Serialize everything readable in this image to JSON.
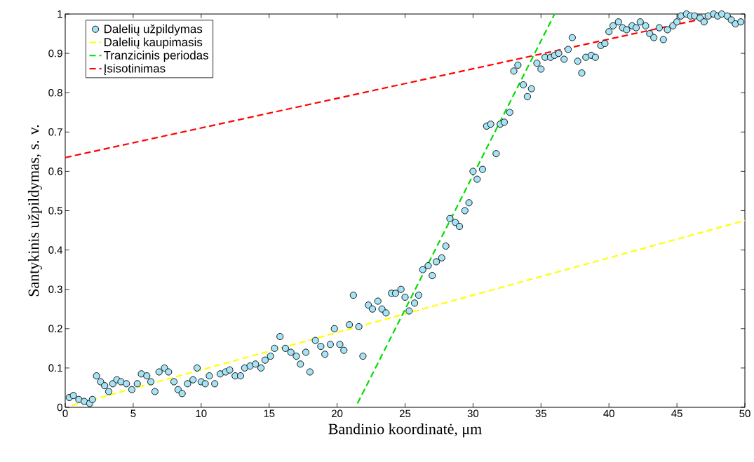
{
  "chart_data": {
    "type": "scatter",
    "xlabel": "Bandinio koordinatė, μm",
    "ylabel": "Santykinis užpildymas, s. v.",
    "xlim": [
      0,
      50
    ],
    "ylim": [
      0,
      1
    ],
    "xticks": [
      0,
      5,
      10,
      15,
      20,
      25,
      30,
      35,
      40,
      45,
      50
    ],
    "yticks": [
      0,
      0.1,
      0.2,
      0.3,
      0.4,
      0.5,
      0.6,
      0.7,
      0.8,
      0.9,
      1
    ],
    "legend": "top left",
    "series": [
      {
        "name": "Dalelių užpildymas",
        "marker": "circle",
        "color": "#a6e3f5",
        "x": [
          0.3,
          0.6,
          1.0,
          1.4,
          1.8,
          2.0,
          2.3,
          2.6,
          2.9,
          3.2,
          3.5,
          3.8,
          4.1,
          4.5,
          4.9,
          5.3,
          5.6,
          6.0,
          6.3,
          6.6,
          6.9,
          7.3,
          7.6,
          8.0,
          8.3,
          8.6,
          9.0,
          9.4,
          9.7,
          10.0,
          10.3,
          10.6,
          11.0,
          11.4,
          11.8,
          12.1,
          12.5,
          12.9,
          13.2,
          13.6,
          14.0,
          14.4,
          14.7,
          15.1,
          15.4,
          15.8,
          16.2,
          16.6,
          17.0,
          17.3,
          17.7,
          18.0,
          18.4,
          18.8,
          19.1,
          19.5,
          19.8,
          20.2,
          20.5,
          20.9,
          21.2,
          21.6,
          21.9,
          22.3,
          22.6,
          23.0,
          23.3,
          23.6,
          24.0,
          24.3,
          24.7,
          25.0,
          25.3,
          25.7,
          26.0,
          26.3,
          26.7,
          27.0,
          27.3,
          27.7,
          28.0,
          28.3,
          28.7,
          29.0,
          29.4,
          29.7,
          30.0,
          30.3,
          30.7,
          31.0,
          31.3,
          31.7,
          32.0,
          32.3,
          32.7,
          33.0,
          33.3,
          33.7,
          34.0,
          34.3,
          34.7,
          35.0,
          35.3,
          35.7,
          36.0,
          36.3,
          36.7,
          37.0,
          37.3,
          37.7,
          38.0,
          38.3,
          38.7,
          39.0,
          39.4,
          39.7,
          40.0,
          40.3,
          40.7,
          41.0,
          41.3,
          41.7,
          42.0,
          42.3,
          42.7,
          43.0,
          43.3,
          43.7,
          44.0,
          44.3,
          44.7,
          45.0,
          45.3,
          45.7,
          46.0,
          46.3,
          46.7,
          47.0,
          47.3,
          47.7,
          48.0,
          48.3,
          48.7,
          49.0,
          49.3,
          49.7
        ],
        "values": [
          0.025,
          0.03,
          0.02,
          0.015,
          0.01,
          0.02,
          0.08,
          0.065,
          0.055,
          0.04,
          0.06,
          0.07,
          0.065,
          0.06,
          0.045,
          0.06,
          0.085,
          0.08,
          0.065,
          0.04,
          0.09,
          0.1,
          0.09,
          0.065,
          0.045,
          0.035,
          0.06,
          0.07,
          0.1,
          0.065,
          0.06,
          0.08,
          0.06,
          0.085,
          0.09,
          0.095,
          0.08,
          0.08,
          0.1,
          0.105,
          0.11,
          0.1,
          0.12,
          0.13,
          0.15,
          0.18,
          0.15,
          0.14,
          0.13,
          0.11,
          0.14,
          0.09,
          0.17,
          0.155,
          0.135,
          0.16,
          0.2,
          0.16,
          0.145,
          0.21,
          0.285,
          0.205,
          0.13,
          0.26,
          0.25,
          0.27,
          0.25,
          0.24,
          0.29,
          0.29,
          0.3,
          0.28,
          0.245,
          0.265,
          0.285,
          0.35,
          0.36,
          0.335,
          0.37,
          0.38,
          0.41,
          0.48,
          0.47,
          0.46,
          0.5,
          0.52,
          0.6,
          0.58,
          0.605,
          0.715,
          0.72,
          0.645,
          0.72,
          0.725,
          0.75,
          0.855,
          0.87,
          0.82,
          0.79,
          0.81,
          0.875,
          0.86,
          0.89,
          0.89,
          0.895,
          0.9,
          0.885,
          0.91,
          0.94,
          0.88,
          0.85,
          0.89,
          0.895,
          0.89,
          0.92,
          0.925,
          0.955,
          0.97,
          0.98,
          0.965,
          0.96,
          0.97,
          0.965,
          0.98,
          0.97,
          0.95,
          0.94,
          0.965,
          0.935,
          0.96,
          0.97,
          0.98,
          0.995,
          1.0,
          0.995,
          0.995,
          0.99,
          0.98,
          0.995,
          1.0,
          0.995,
          1.0,
          0.995,
          0.985,
          0.975,
          0.98
        ]
      },
      {
        "name": "Dalelių kaupimasis",
        "type": "line",
        "line_style": "dashed",
        "color": "#ffff00",
        "x": [
          0.5,
          50
        ],
        "values": [
          0.005,
          0.475
        ]
      },
      {
        "name": "Tranzicinis periodas",
        "type": "line",
        "line_style": "dashed",
        "color": "#00dd00",
        "x": [
          21.5,
          36
        ],
        "values": [
          0.01,
          1.0
        ]
      },
      {
        "name": "Įsisotinimas",
        "type": "line",
        "line_style": "dashed",
        "color": "#ff0000",
        "x": [
          0,
          48.5
        ],
        "values": [
          0.635,
          1.0
        ]
      }
    ]
  }
}
